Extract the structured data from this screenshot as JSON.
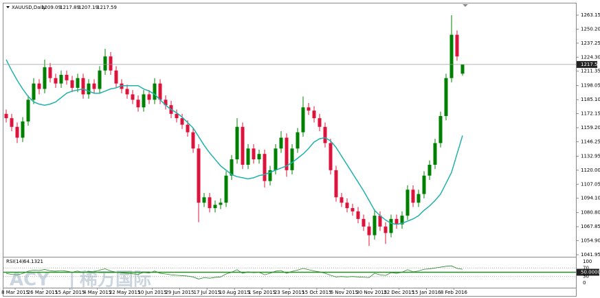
{
  "chart_data": [
    {
      "type": "candlestick",
      "title": "XAUUSD,Daily",
      "up_color": "#008000",
      "down_color": "#dc143c",
      "open": [
        1172,
        1168,
        1160,
        1150,
        1165,
        1185,
        1200,
        1195,
        1215,
        1205,
        1200,
        1208,
        1203,
        1196,
        1205,
        1190,
        1200,
        1195,
        1212,
        1225,
        1212,
        1200,
        1195,
        1190,
        1185,
        1178,
        1190,
        1185,
        1200,
        1185,
        1180,
        1172,
        1168,
        1162,
        1155,
        1140,
        1090,
        1095,
        1085,
        1088,
        1090,
        1115,
        1130,
        1160,
        1125,
        1140,
        1130,
        1135,
        1110,
        1120,
        1140,
        1150,
        1120,
        1140,
        1155,
        1178,
        1175,
        1168,
        1160,
        1145,
        1120,
        1095,
        1090,
        1085,
        1082,
        1075,
        1068,
        1060,
        1078,
        1068,
        1062,
        1075,
        1070,
        1078,
        1102,
        1090,
        1098,
        1115,
        1125,
        1145,
        1170,
        1205,
        1245,
        1209.09
      ],
      "high": [
        1176,
        1172,
        1164,
        1169,
        1189,
        1205,
        1204,
        1222,
        1219,
        1209,
        1212,
        1212,
        1207,
        1209,
        1209,
        1204,
        1204,
        1216,
        1232,
        1229,
        1216,
        1204,
        1199,
        1194,
        1189,
        1194,
        1194,
        1205,
        1204,
        1189,
        1184,
        1176,
        1172,
        1166,
        1159,
        1144,
        1099,
        1099,
        1092,
        1094,
        1119,
        1134,
        1168,
        1164,
        1144,
        1144,
        1139,
        1139,
        1124,
        1144,
        1156,
        1154,
        1144,
        1159,
        1188,
        1182,
        1179,
        1172,
        1164,
        1149,
        1124,
        1099,
        1094,
        1089,
        1086,
        1079,
        1072,
        1084,
        1082,
        1072,
        1079,
        1079,
        1082,
        1106,
        1106,
        1102,
        1119,
        1129,
        1149,
        1174,
        1209,
        1263,
        1249,
        1217.89
      ],
      "low": [
        1164,
        1156,
        1145,
        1146,
        1161,
        1181,
        1190,
        1191,
        1201,
        1196,
        1196,
        1199,
        1192,
        1192,
        1186,
        1186,
        1191,
        1191,
        1208,
        1208,
        1196,
        1191,
        1186,
        1181,
        1174,
        1174,
        1181,
        1181,
        1181,
        1176,
        1168,
        1164,
        1158,
        1151,
        1136,
        1072,
        1086,
        1081,
        1081,
        1084,
        1086,
        1111,
        1126,
        1121,
        1121,
        1126,
        1126,
        1104,
        1106,
        1116,
        1136,
        1114,
        1116,
        1136,
        1151,
        1171,
        1164,
        1156,
        1141,
        1116,
        1091,
        1086,
        1081,
        1078,
        1071,
        1064,
        1050,
        1056,
        1064,
        1052,
        1058,
        1066,
        1066,
        1074,
        1086,
        1086,
        1094,
        1111,
        1121,
        1141,
        1166,
        1201,
        1221,
        1207.19
      ],
      "close": [
        1168,
        1160,
        1150,
        1165,
        1185,
        1200,
        1195,
        1215,
        1205,
        1200,
        1208,
        1203,
        1196,
        1205,
        1190,
        1200,
        1195,
        1212,
        1225,
        1212,
        1200,
        1195,
        1190,
        1185,
        1178,
        1190,
        1185,
        1200,
        1185,
        1180,
        1172,
        1168,
        1162,
        1155,
        1140,
        1090,
        1095,
        1085,
        1088,
        1090,
        1115,
        1130,
        1160,
        1125,
        1140,
        1130,
        1135,
        1110,
        1120,
        1140,
        1150,
        1120,
        1140,
        1155,
        1178,
        1175,
        1168,
        1160,
        1145,
        1120,
        1095,
        1090,
        1085,
        1082,
        1075,
        1068,
        1060,
        1078,
        1068,
        1062,
        1075,
        1070,
        1078,
        1102,
        1090,
        1098,
        1115,
        1125,
        1145,
        1170,
        1205,
        1245,
        1225,
        1217.59
      ],
      "ma": {
        "color": "#20b2aa",
        "values": [
          1222,
          1212,
          1203,
          1195,
          1188,
          1183,
          1181,
          1180,
          1181,
          1183,
          1187,
          1191,
          1193,
          1194,
          1195,
          1193,
          1191,
          1191,
          1193,
          1195,
          1196,
          1198,
          1198,
          1198,
          1198,
          1195,
          1193,
          1190,
          1185,
          1180,
          1176,
          1173,
          1169,
          1164,
          1159,
          1151,
          1143,
          1136,
          1130,
          1124,
          1120,
          1116,
          1114,
          1113,
          1112,
          1113,
          1115,
          1116,
          1118,
          1120,
          1122,
          1124,
          1127,
          1131,
          1135,
          1140,
          1146,
          1149,
          1150,
          1147,
          1141,
          1133,
          1125,
          1117,
          1109,
          1101,
          1092,
          1083,
          1078,
          1074,
          1071,
          1070,
          1071,
          1073,
          1075,
          1078,
          1083,
          1087,
          1092,
          1098,
          1108,
          1118,
          1135,
          1152
        ]
      },
      "xtick_labels": [
        "8 Mar 2015",
        "26 Mar 2015",
        "15 Apr 2015",
        "4 May 2015",
        "22 May 2015",
        "10 Jun 2015",
        "29 Jun 2015",
        "17 Jul 2015",
        "10 Aug 2015",
        "1 Sep 2015",
        "23 Sep 2015",
        "15 Oct 2015",
        "6 Nov 2015",
        "30 Nov 2015",
        "22 Dec 2015",
        "15 Jan 2016",
        "8 Feb 2016"
      ],
      "ylim": [
        1040.68,
        1273.92
      ],
      "yticks": [
        1041.95,
        {
          "value": 1054.9,
          "label": "1054.90"
        },
        1067.85,
        {
          "value": 1080.8,
          "label": "1080.80"
        },
        {
          "value": 1094.1,
          "label": "1094.10"
        },
        1107.05,
        {
          "value": 1120,
          "label": "1120.00"
        },
        1132.95,
        1146.25,
        {
          "value": 1159.2,
          "label": "1159.20"
        },
        1172.15,
        {
          "value": 1185.1,
          "label": "1185.10"
        },
        1198.05,
        1211.35,
        {
          "value": 1224.3,
          "label": "1224.30"
        },
        1237.25,
        {
          "value": 1250.2,
          "label": "1250.20"
        },
        1263.15
      ],
      "watermark": [
        "ACY",
        "稀万国际"
      ]
    },
    {
      "type": "line",
      "title": "RSI(14)",
      "color": "#228b22",
      "values": [
        45,
        40,
        38,
        44,
        55,
        60,
        58,
        63,
        57,
        55,
        58,
        55,
        50,
        56,
        48,
        54,
        52,
        60,
        66,
        56,
        50,
        47,
        45,
        43,
        40,
        50,
        46,
        56,
        45,
        42,
        38,
        36,
        34,
        32,
        28,
        18,
        25,
        22,
        26,
        28,
        42,
        50,
        62,
        45,
        52,
        48,
        50,
        38,
        45,
        55,
        58,
        45,
        54,
        60,
        68,
        62,
        56,
        52,
        45,
        36,
        28,
        30,
        28,
        30,
        28,
        27,
        25,
        45,
        38,
        35,
        48,
        45,
        50,
        62,
        52,
        56,
        64,
        66,
        70,
        74,
        78,
        80,
        68,
        64.1321
      ],
      "ylim": [
        0,
        100
      ],
      "yticks": [
        100,
        70,
        {
          "value": 50,
          "label": "50.0000"
        },
        30,
        0
      ]
    }
  ]
}
